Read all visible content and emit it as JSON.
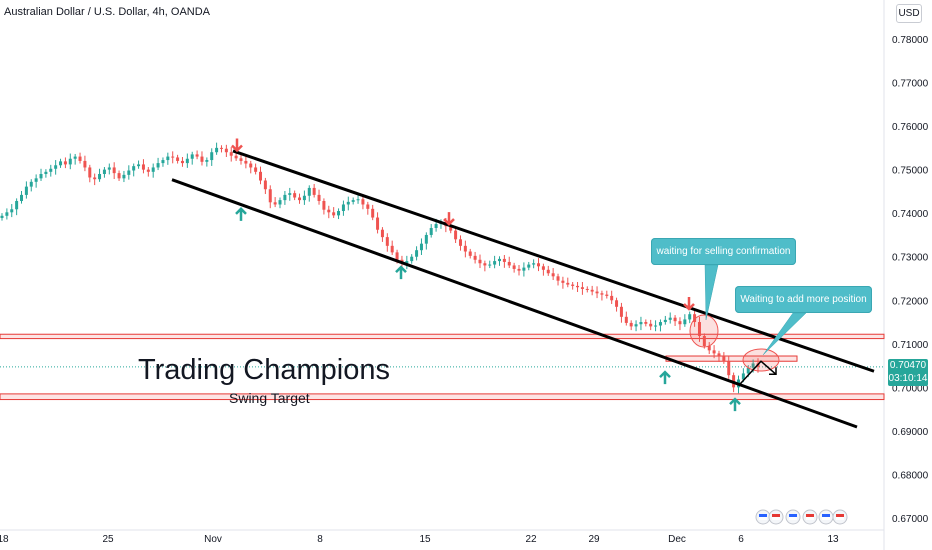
{
  "header": {
    "title": "Australian Dollar / U.S. Dollar, 4h, OANDA",
    "currency_button": "USD"
  },
  "annotations": {
    "brand_title": "Trading Champions",
    "brand_subtitle": "Swing Target",
    "callout_selling": "waiting for selling confirmation",
    "callout_add": "Waiting to add more position"
  },
  "price_tag": {
    "price": "0.70470",
    "countdown": "03:10:14"
  },
  "colors": {
    "up": "#26a69a",
    "down": "#ef5350",
    "callout": "#4fbdc9",
    "zone_line": "#e53935",
    "zone_fill": "#fde4e4",
    "channel": "#000000"
  },
  "bottom_icons": [
    "flag-icon",
    "flag-icon",
    "flag-icon",
    "flag-icon",
    "flag-icon",
    "flag-icon"
  ],
  "chart_data": {
    "type": "candlestick",
    "symbol": "AUD/USD",
    "timeframe": "4h",
    "x_tick_labels": [
      "18",
      "25",
      "Nov",
      "8",
      "15",
      "22",
      "29",
      "Dec",
      "6",
      "13"
    ],
    "y_ticks": [
      0.67,
      0.68,
      0.69,
      0.7,
      0.71,
      0.72,
      0.73,
      0.74,
      0.75,
      0.76,
      0.77,
      0.78
    ],
    "ylim": [
      0.667,
      0.7845
    ],
    "last_price": 0.7047,
    "closes": [
      0.7394,
      0.7402,
      0.7409,
      0.7428,
      0.7442,
      0.7461,
      0.7472,
      0.748,
      0.749,
      0.7495,
      0.7502,
      0.751,
      0.7519,
      0.7512,
      0.7525,
      0.753,
      0.752,
      0.7505,
      0.7482,
      0.7478,
      0.749,
      0.75,
      0.7505,
      0.7492,
      0.748,
      0.7488,
      0.7498,
      0.7508,
      0.7512,
      0.75,
      0.7495,
      0.7505,
      0.7515,
      0.7522,
      0.753,
      0.7528,
      0.752,
      0.7515,
      0.7525,
      0.7535,
      0.753,
      0.7518,
      0.7522,
      0.754,
      0.755,
      0.7548,
      0.754,
      0.7532,
      0.7526,
      0.752,
      0.7514,
      0.7505,
      0.7495,
      0.7475,
      0.7455,
      0.7425,
      0.742,
      0.743,
      0.7442,
      0.7446,
      0.7436,
      0.743,
      0.744,
      0.7458,
      0.7442,
      0.7428,
      0.7408,
      0.7402,
      0.7395,
      0.7405,
      0.742,
      0.7426,
      0.743,
      0.7432,
      0.742,
      0.741,
      0.739,
      0.7362,
      0.7345,
      0.7325,
      0.731,
      0.7293,
      0.7285,
      0.729,
      0.73,
      0.7315,
      0.733,
      0.735,
      0.7366,
      0.7375,
      0.738,
      0.737,
      0.736,
      0.734,
      0.7325,
      0.7312,
      0.7302,
      0.7293,
      0.7285,
      0.728,
      0.7282,
      0.729,
      0.7295,
      0.7288,
      0.728,
      0.7272,
      0.7268,
      0.7275,
      0.7282,
      0.7285,
      0.7278,
      0.727,
      0.7262,
      0.7255,
      0.7245,
      0.724,
      0.7236,
      0.7233,
      0.723,
      0.7226,
      0.7224,
      0.722,
      0.7216,
      0.7213,
      0.721,
      0.72,
      0.7185,
      0.7162,
      0.7148,
      0.714,
      0.7145,
      0.715,
      0.7146,
      0.714,
      0.7142,
      0.715,
      0.7155,
      0.716,
      0.7152,
      0.7145,
      0.7156,
      0.7168,
      0.715,
      0.7118,
      0.7095,
      0.7085,
      0.7078,
      0.7072,
      0.706,
      0.7028,
      0.7,
      0.7018,
      0.7032,
      0.7045,
      0.7055,
      0.7047
    ],
    "support_resistance_zones": [
      {
        "top": 0.7122,
        "bottom": 0.7112
      },
      {
        "top": 0.7072,
        "bottom": 0.706
      },
      {
        "top": 0.6985,
        "bottom": 0.6972
      }
    ],
    "upper_channel": {
      "from": [
        233,
        0.7543
      ],
      "to": [
        874,
        0.7037
      ]
    },
    "lower_channel": {
      "from": [
        172,
        0.7477
      ],
      "to": [
        857,
        0.6909
      ]
    },
    "lower_channel_2": {
      "from": [
        735,
        0.6973
      ],
      "to": [
        857,
        0.6909
      ]
    },
    "sell_arrows": [
      [
        237,
        0.7544
      ],
      [
        449,
        0.7375
      ],
      [
        689,
        0.718
      ]
    ],
    "buy_arrows": [
      [
        241,
        0.741
      ],
      [
        401,
        0.7276
      ],
      [
        665,
        0.7035
      ],
      [
        735,
        0.6973
      ]
    ],
    "projection_path": [
      [
        739,
        0.7005
      ],
      [
        761,
        0.706
      ],
      [
        776,
        0.703
      ]
    ]
  }
}
